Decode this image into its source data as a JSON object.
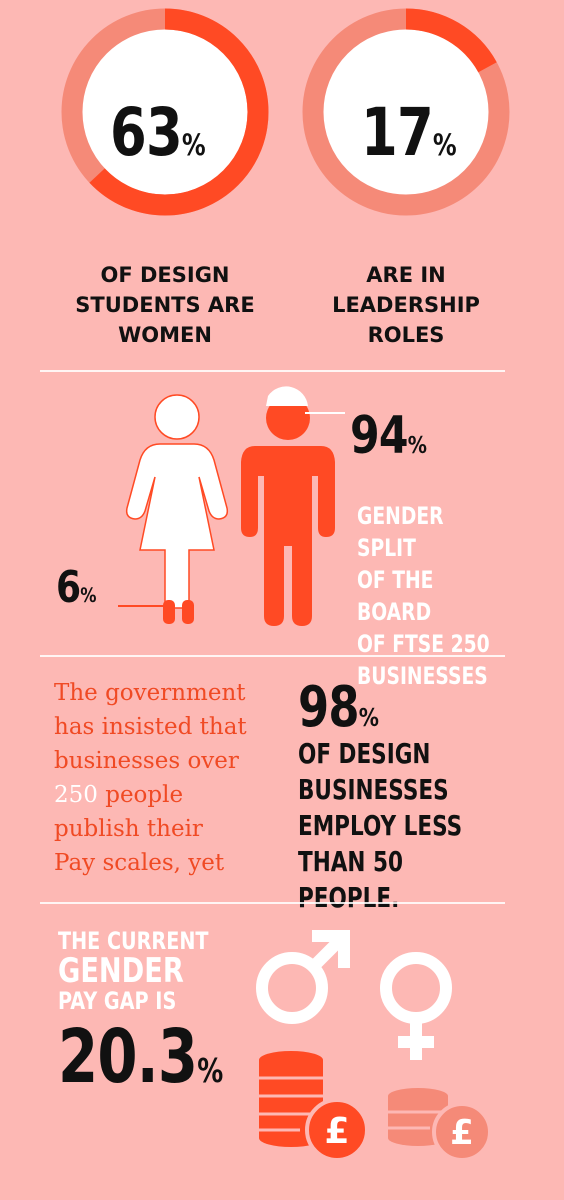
{
  "colors": {
    "background": "#fdb8b4",
    "accent": "#ff4a24",
    "ring_light": "#f58a78",
    "white": "#ffffff",
    "dark": "#111111"
  },
  "stat_women_students": {
    "value": "63",
    "unit": "%",
    "percent": 63,
    "label_lines": [
      "OF DESIGN",
      "STUDENTS ARE",
      "WOMEN"
    ]
  },
  "stat_leadership": {
    "value": "17",
    "unit": "%",
    "percent": 17,
    "label_lines": [
      "ARE IN",
      "LEADERSHIP",
      "ROLES"
    ]
  },
  "board_split": {
    "male_value": "94",
    "female_value": "6",
    "unit": "%",
    "label_lines": [
      "GENDER SPLIT",
      "OF THE BOARD",
      "OF FTSE 250",
      "BUSINESSES"
    ],
    "icons": [
      "woman-icon",
      "man-icon"
    ]
  },
  "government": {
    "line1": "The government",
    "line2": "has insisted that",
    "line3": "businesses over",
    "line4_number": "250",
    "line4_rest": " people",
    "line5": "publish their",
    "line6": "Pay scales, yet"
  },
  "design_businesses": {
    "value": "98",
    "unit": "%",
    "label_lines": [
      "OF DESIGN",
      "BUSINESSES",
      "EMPLOY LESS",
      "THAN 50 PEOPLE."
    ]
  },
  "pay_gap": {
    "label_lines": [
      "THE CURRENT",
      "GENDER",
      "PAY GAP IS"
    ],
    "value": "20.3",
    "unit": "%",
    "icons": [
      "male-symbol-icon",
      "female-symbol-icon",
      "coins-pound-icon"
    ],
    "currency_symbol": "£"
  }
}
